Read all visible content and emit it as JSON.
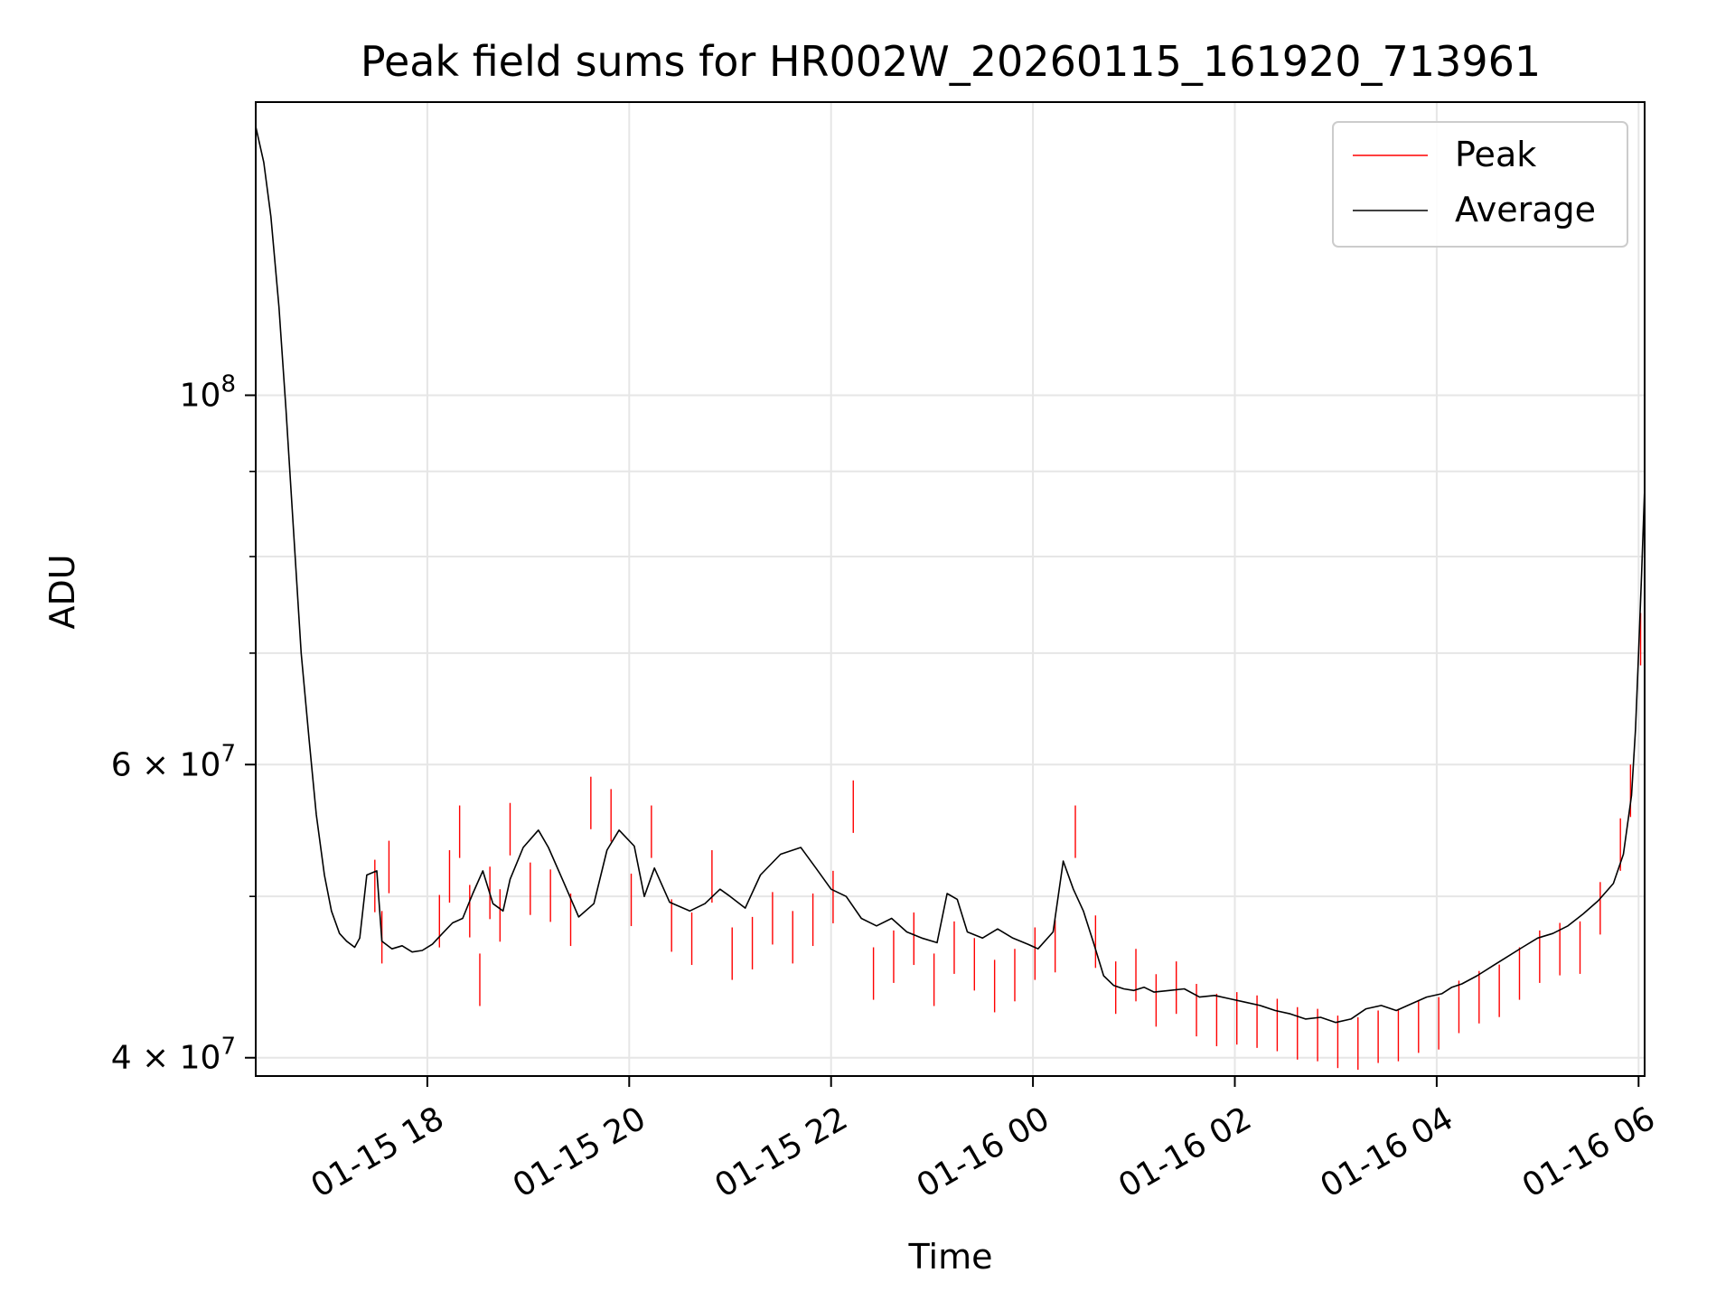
{
  "chart_data": {
    "type": "line",
    "title": "Peak field sums for HR002W_20260115_161920_713961",
    "xlabel": "Time",
    "ylabel": "ADU",
    "yscale": "log",
    "ylim": [
      39000000,
      150000000
    ],
    "xlim_hours": [
      -1.7,
      12.06
    ],
    "x_unit": "hours relative to 01-15 18:00",
    "grid": true,
    "legend_position": "top-right",
    "x_ticks": [
      {
        "hour": 0,
        "label": "01-15 18"
      },
      {
        "hour": 2,
        "label": "01-15 20"
      },
      {
        "hour": 4,
        "label": "01-15 22"
      },
      {
        "hour": 6,
        "label": "01-16 00"
      },
      {
        "hour": 8,
        "label": "01-16 02"
      },
      {
        "hour": 10,
        "label": "01-16 04"
      },
      {
        "hour": 12,
        "label": "01-16 06"
      }
    ],
    "y_ticks": [
      {
        "value": 100000000,
        "mantissa": "10",
        "exp": "8"
      },
      {
        "value": 60000000,
        "mantissa": "6 × 10",
        "exp": "7"
      },
      {
        "value": 40000000,
        "mantissa": "4 × 10",
        "exp": "7"
      }
    ],
    "y_minor_ticks": [
      50000000,
      70000000,
      80000000,
      90000000
    ],
    "series": [
      {
        "name": "Average",
        "color": "#000000",
        "points": [
          [
            -1.7,
            145000000
          ],
          [
            -1.62,
            138000000
          ],
          [
            -1.55,
            128000000
          ],
          [
            -1.47,
            113000000
          ],
          [
            -1.4,
            98000000
          ],
          [
            -1.32,
            82000000
          ],
          [
            -1.25,
            70000000
          ],
          [
            -1.17,
            62000000
          ],
          [
            -1.1,
            56000000
          ],
          [
            -1.02,
            51500000
          ],
          [
            -0.95,
            49000000
          ],
          [
            -0.87,
            47500000
          ],
          [
            -0.8,
            47000000
          ],
          [
            -0.72,
            46600000
          ],
          [
            -0.67,
            47200000
          ],
          [
            -0.6,
            51500000
          ],
          [
            -0.5,
            51800000
          ],
          [
            -0.45,
            47000000
          ],
          [
            -0.35,
            46500000
          ],
          [
            -0.25,
            46700000
          ],
          [
            -0.15,
            46300000
          ],
          [
            -0.05,
            46400000
          ],
          [
            0.05,
            46800000
          ],
          [
            0.15,
            47500000
          ],
          [
            0.25,
            48200000
          ],
          [
            0.35,
            48500000
          ],
          [
            0.45,
            50200000
          ],
          [
            0.55,
            51800000
          ],
          [
            0.65,
            49500000
          ],
          [
            0.75,
            49000000
          ],
          [
            0.82,
            51200000
          ],
          [
            0.95,
            53500000
          ],
          [
            1.1,
            54800000
          ],
          [
            1.2,
            53500000
          ],
          [
            1.35,
            51000000
          ],
          [
            1.5,
            48600000
          ],
          [
            1.65,
            49500000
          ],
          [
            1.78,
            53300000
          ],
          [
            1.9,
            54800000
          ],
          [
            2.05,
            53600000
          ],
          [
            2.15,
            50000000
          ],
          [
            2.25,
            52000000
          ],
          [
            2.4,
            49600000
          ],
          [
            2.6,
            49000000
          ],
          [
            2.75,
            49500000
          ],
          [
            2.9,
            50500000
          ],
          [
            3.0,
            50000000
          ],
          [
            3.15,
            49200000
          ],
          [
            3.3,
            51500000
          ],
          [
            3.5,
            53000000
          ],
          [
            3.7,
            53500000
          ],
          [
            3.85,
            52000000
          ],
          [
            4.0,
            50500000
          ],
          [
            4.15,
            50000000
          ],
          [
            4.3,
            48500000
          ],
          [
            4.45,
            48000000
          ],
          [
            4.6,
            48500000
          ],
          [
            4.75,
            47600000
          ],
          [
            4.9,
            47200000
          ],
          [
            5.05,
            46900000
          ],
          [
            5.15,
            50200000
          ],
          [
            5.25,
            49800000
          ],
          [
            5.35,
            47600000
          ],
          [
            5.5,
            47200000
          ],
          [
            5.65,
            47800000
          ],
          [
            5.8,
            47200000
          ],
          [
            5.95,
            46800000
          ],
          [
            6.05,
            46500000
          ],
          [
            6.2,
            47600000
          ],
          [
            6.3,
            52500000
          ],
          [
            6.4,
            50500000
          ],
          [
            6.5,
            49000000
          ],
          [
            6.6,
            46900000
          ],
          [
            6.7,
            44800000
          ],
          [
            6.8,
            44200000
          ],
          [
            6.9,
            44000000
          ],
          [
            7.0,
            43900000
          ],
          [
            7.1,
            44100000
          ],
          [
            7.2,
            43800000
          ],
          [
            7.35,
            43900000
          ],
          [
            7.5,
            44000000
          ],
          [
            7.65,
            43500000
          ],
          [
            7.8,
            43600000
          ],
          [
            7.95,
            43400000
          ],
          [
            8.1,
            43200000
          ],
          [
            8.25,
            43000000
          ],
          [
            8.4,
            42700000
          ],
          [
            8.55,
            42500000
          ],
          [
            8.7,
            42200000
          ],
          [
            8.85,
            42300000
          ],
          [
            9.0,
            42000000
          ],
          [
            9.15,
            42200000
          ],
          [
            9.3,
            42800000
          ],
          [
            9.45,
            43000000
          ],
          [
            9.6,
            42700000
          ],
          [
            9.75,
            43100000
          ],
          [
            9.9,
            43500000
          ],
          [
            10.05,
            43700000
          ],
          [
            10.15,
            44100000
          ],
          [
            10.25,
            44300000
          ],
          [
            10.4,
            44800000
          ],
          [
            10.55,
            45400000
          ],
          [
            10.7,
            46000000
          ],
          [
            10.85,
            46600000
          ],
          [
            11.0,
            47200000
          ],
          [
            11.15,
            47500000
          ],
          [
            11.3,
            48000000
          ],
          [
            11.45,
            48800000
          ],
          [
            11.6,
            49700000
          ],
          [
            11.75,
            50900000
          ],
          [
            11.85,
            53000000
          ],
          [
            11.93,
            57500000
          ],
          [
            11.97,
            63000000
          ],
          [
            12.0,
            70000000
          ],
          [
            12.03,
            78000000
          ],
          [
            12.06,
            88000000
          ]
        ]
      },
      {
        "name": "Peak",
        "color": "#ff0000",
        "points": [
          [
            -0.52,
            52600000
          ],
          [
            -0.45,
            49000000
          ],
          [
            -0.38,
            54000000
          ],
          [
            0.12,
            50100000
          ],
          [
            0.22,
            53300000
          ],
          [
            0.32,
            56700000
          ],
          [
            0.42,
            50800000
          ],
          [
            0.52,
            46200000
          ],
          [
            0.62,
            52100000
          ],
          [
            0.72,
            50500000
          ],
          [
            0.82,
            56900000
          ],
          [
            1.02,
            52400000
          ],
          [
            1.22,
            51900000
          ],
          [
            1.42,
            50200000
          ],
          [
            1.62,
            59000000
          ],
          [
            1.82,
            58000000
          ],
          [
            2.02,
            51600000
          ],
          [
            2.22,
            56700000
          ],
          [
            2.42,
            49800000
          ],
          [
            2.62,
            48900000
          ],
          [
            2.82,
            53300000
          ],
          [
            3.02,
            47900000
          ],
          [
            3.22,
            48600000
          ],
          [
            3.42,
            50300000
          ],
          [
            3.62,
            49000000
          ],
          [
            3.82,
            50200000
          ],
          [
            4.02,
            51800000
          ],
          [
            4.22,
            58700000
          ],
          [
            4.42,
            46600000
          ],
          [
            4.62,
            47700000
          ],
          [
            4.82,
            48900000
          ],
          [
            5.02,
            46200000
          ],
          [
            5.22,
            48300000
          ],
          [
            5.42,
            47200000
          ],
          [
            5.62,
            45800000
          ],
          [
            5.82,
            46500000
          ],
          [
            6.02,
            47900000
          ],
          [
            6.22,
            48400000
          ],
          [
            6.42,
            56700000
          ],
          [
            6.62,
            48700000
          ],
          [
            6.82,
            45700000
          ],
          [
            7.02,
            46500000
          ],
          [
            7.22,
            44900000
          ],
          [
            7.42,
            45700000
          ],
          [
            7.62,
            44300000
          ],
          [
            7.82,
            43700000
          ],
          [
            8.02,
            43800000
          ],
          [
            8.22,
            43600000
          ],
          [
            8.42,
            43400000
          ],
          [
            8.62,
            42900000
          ],
          [
            8.82,
            42800000
          ],
          [
            9.02,
            42400000
          ],
          [
            9.22,
            42300000
          ],
          [
            9.42,
            42700000
          ],
          [
            9.62,
            42800000
          ],
          [
            9.82,
            43300000
          ],
          [
            10.02,
            43500000
          ],
          [
            10.22,
            44500000
          ],
          [
            10.42,
            45100000
          ],
          [
            10.62,
            45500000
          ],
          [
            10.82,
            46600000
          ],
          [
            11.02,
            47700000
          ],
          [
            11.22,
            48200000
          ],
          [
            11.42,
            48300000
          ],
          [
            11.62,
            51000000
          ],
          [
            11.82,
            55700000
          ],
          [
            11.92,
            60000000
          ],
          [
            12.02,
            74000000
          ]
        ]
      }
    ]
  }
}
